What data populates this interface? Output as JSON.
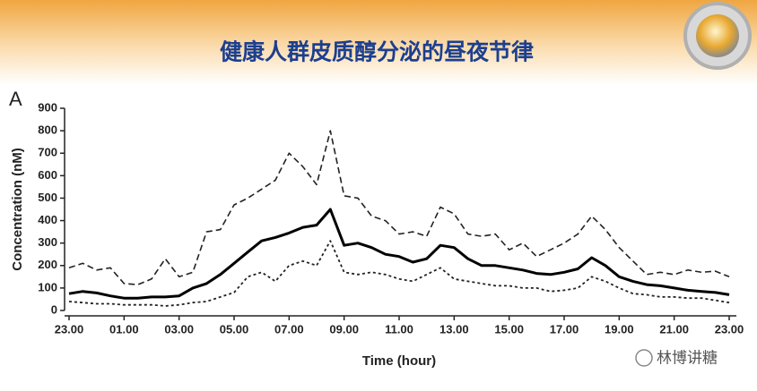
{
  "header": {
    "title": "健康人群皮质醇分泌的昼夜节律"
  },
  "watermark": "林博讲糖",
  "chart_data": {
    "type": "line",
    "panel_label": "A",
    "x_label": "Time (hour)",
    "y_label": "Concentration (nM)",
    "categories": [
      "23.00",
      null,
      null,
      null,
      "01.00",
      null,
      null,
      null,
      "03.00",
      null,
      null,
      null,
      "05.00",
      null,
      null,
      null,
      "07.00",
      null,
      null,
      null,
      "09.00",
      null,
      null,
      null,
      "11.00",
      null,
      null,
      null,
      "13.00",
      null,
      null,
      null,
      "15.00",
      null,
      null,
      null,
      "17.00",
      null,
      null,
      null,
      "19.00",
      null,
      null,
      null,
      "21.00",
      null,
      null,
      null,
      "23.00"
    ],
    "ylim": [
      0,
      900
    ],
    "yticks": [
      0,
      100,
      200,
      300,
      400,
      500,
      600,
      700,
      800,
      900
    ],
    "series": [
      {
        "color": "#222222",
        "line_style": "dashed",
        "values": [
          190,
          210,
          180,
          190,
          120,
          115,
          140,
          230,
          150,
          170,
          350,
          360,
          470,
          500,
          540,
          580,
          700,
          640,
          560,
          800,
          510,
          500,
          420,
          400,
          340,
          350,
          330,
          460,
          430,
          340,
          330,
          340,
          270,
          300,
          240,
          270,
          300,
          340,
          420,
          360,
          280,
          220,
          160,
          170,
          160,
          180,
          170,
          175,
          150
        ]
      },
      {
        "color": "#000000",
        "line_style": "solid",
        "values": [
          75,
          85,
          78,
          65,
          55,
          55,
          60,
          60,
          65,
          100,
          120,
          160,
          210,
          260,
          310,
          325,
          345,
          370,
          380,
          450,
          290,
          300,
          280,
          250,
          240,
          215,
          230,
          290,
          280,
          230,
          200,
          200,
          190,
          180,
          165,
          160,
          170,
          185,
          235,
          200,
          150,
          130,
          115,
          110,
          100,
          90,
          85,
          80,
          70
        ]
      },
      {
        "color": "#222222",
        "line_style": "dotted",
        "values": [
          40,
          35,
          30,
          30,
          25,
          25,
          25,
          20,
          25,
          35,
          40,
          60,
          80,
          150,
          170,
          130,
          200,
          220,
          200,
          310,
          170,
          160,
          170,
          160,
          140,
          130,
          160,
          190,
          140,
          130,
          120,
          110,
          110,
          100,
          100,
          85,
          90,
          100,
          150,
          130,
          100,
          75,
          70,
          60,
          60,
          55,
          55,
          45,
          35
        ]
      }
    ]
  }
}
